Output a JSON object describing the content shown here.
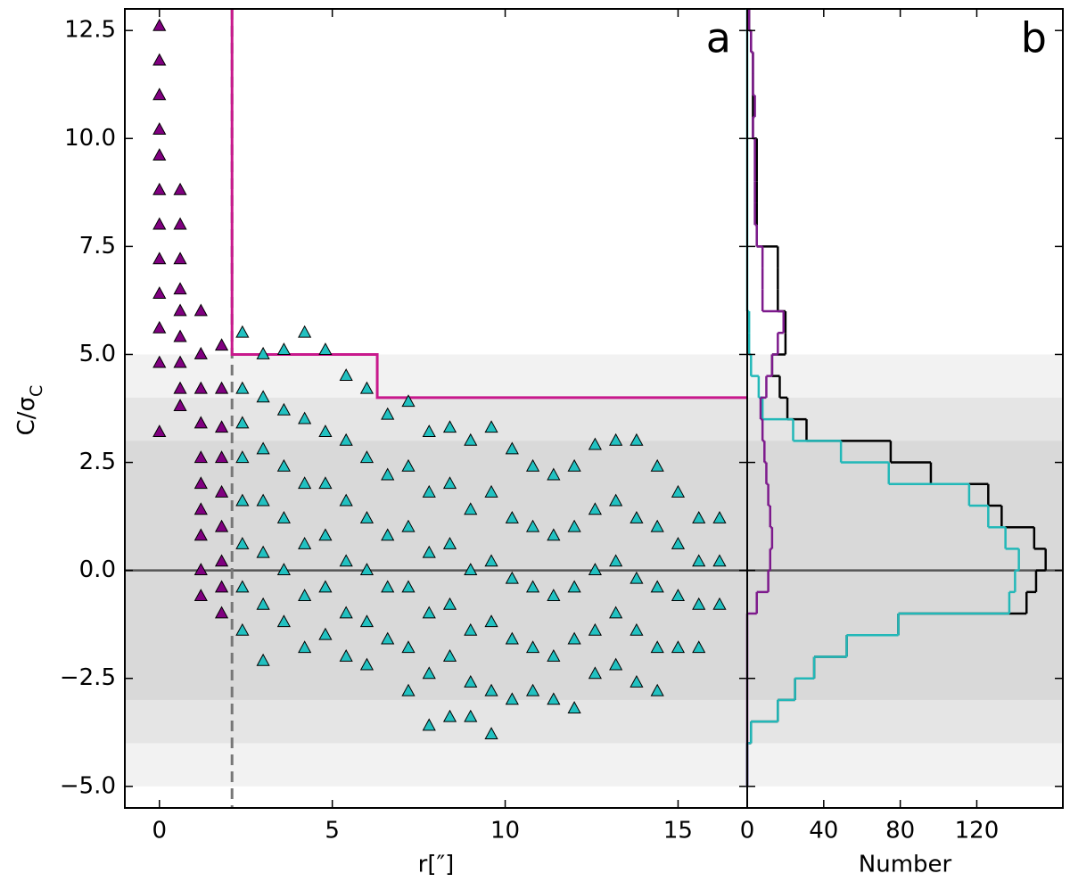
{
  "chart_data": [
    {
      "type": "scatter",
      "xlabel": "r[″]",
      "ylabel": "C/σ",
      "ylabel_sub": "C",
      "annotation": "a",
      "xlim": [
        -1,
        17
      ],
      "ylim": [
        -5.5,
        13
      ],
      "xticks": [
        0,
        5,
        10,
        15
      ],
      "yticks": [
        {
          "value": -5,
          "label": "−5.0"
        },
        {
          "value": -2.5,
          "label": "−2.5"
        },
        {
          "value": 0,
          "label": "0.0"
        },
        2.5,
        {
          "value": 5,
          "label": "5.0"
        },
        7.5,
        {
          "value": 10,
          "label": "10.0"
        },
        12.5
      ],
      "bands": [
        {
          "half_width": 5,
          "color": "#f2f2f2"
        },
        {
          "half_width": 4,
          "color": "#e5e5e5"
        },
        {
          "half_width": 3,
          "color": "#d9d9d9"
        }
      ],
      "hline": 0,
      "hline_color": "#555555",
      "vline": 2.1,
      "vline_color": "#777777",
      "selection": {
        "color": "#c8198c",
        "x": [
          2.1,
          2.1,
          6.3,
          6.3,
          17
        ],
        "y": [
          13,
          5,
          5,
          4,
          4
        ]
      },
      "series": [
        {
          "color": "#800080",
          "x": [
            0,
            0,
            0,
            0,
            0,
            0,
            0,
            0,
            0,
            0,
            0,
            0,
            0.6,
            0.6,
            0.6,
            0.6,
            0.6,
            0.6,
            0.6,
            0.6,
            0.6,
            1.2,
            1.2,
            1.2,
            1.2,
            1.2,
            1.2,
            1.2,
            1.2,
            1.2,
            1.2,
            1.8,
            1.8,
            1.8,
            1.8,
            1.8,
            1.8,
            1.8,
            1.8,
            1.8
          ],
          "values": [
            12.6,
            11.8,
            11,
            10.2,
            9.6,
            8.8,
            8,
            7.2,
            6.4,
            5.6,
            4.8,
            3.2,
            8.8,
            8,
            7.2,
            6.5,
            6,
            5.4,
            4.8,
            4.2,
            3.8,
            6,
            5,
            4.2,
            3.4,
            2.6,
            2,
            1.4,
            0.8,
            0,
            -0.6,
            5.2,
            4.2,
            3.3,
            2.6,
            1.8,
            1,
            0.2,
            -0.4,
            -1
          ]
        },
        {
          "color": "#22c1c1",
          "x": [
            2.4,
            2.4,
            2.4,
            2.4,
            2.4,
            2.4,
            2.4,
            2.4,
            3,
            3,
            3,
            3,
            3,
            3,
            3,
            3.6,
            3.6,
            3.6,
            3.6,
            3.6,
            3.6,
            4.2,
            4.2,
            4.2,
            4.2,
            4.2,
            4.2,
            4.8,
            4.8,
            4.8,
            4.8,
            4.8,
            4.8,
            5.4,
            5.4,
            5.4,
            5.4,
            5.4,
            5.4,
            6,
            6,
            6,
            6,
            6,
            6,
            6.6,
            6.6,
            6.6,
            6.6,
            6.6,
            7.2,
            7.2,
            7.2,
            7.2,
            7.2,
            7.2,
            7.8,
            7.8,
            7.8,
            7.8,
            7.8,
            7.8,
            8.4,
            8.4,
            8.4,
            8.4,
            8.4,
            8.4,
            9,
            9,
            9,
            9,
            9,
            9,
            9.6,
            9.6,
            9.6,
            9.6,
            9.6,
            9.6,
            10.2,
            10.2,
            10.2,
            10.2,
            10.2,
            10.8,
            10.8,
            10.8,
            10.8,
            10.8,
            11.4,
            11.4,
            11.4,
            11.4,
            11.4,
            12,
            12,
            12,
            12,
            12,
            12.6,
            12.6,
            12.6,
            12.6,
            12.6,
            13.2,
            13.2,
            13.2,
            13.2,
            13.2,
            13.8,
            13.8,
            13.8,
            13.8,
            13.8,
            14.4,
            14.4,
            14.4,
            14.4,
            14.4,
            15,
            15,
            15,
            15,
            15.6,
            15.6,
            15.6,
            15.6,
            16.2,
            16.2,
            16.2
          ],
          "values": [
            5.5,
            4.2,
            3.4,
            2.6,
            1.6,
            0.6,
            -0.4,
            -1.4,
            5,
            4,
            2.8,
            1.6,
            0.4,
            -0.8,
            -2.1,
            5.1,
            3.7,
            2.4,
            1.2,
            0,
            -1.2,
            5.5,
            3.5,
            2,
            0.6,
            -0.6,
            -1.8,
            5.1,
            3.2,
            2,
            0.8,
            -0.4,
            -1.5,
            4.5,
            3,
            1.6,
            0.2,
            -1,
            -2,
            4.2,
            2.6,
            1.2,
            0,
            -1.2,
            -2.2,
            3.6,
            2.2,
            0.8,
            -0.4,
            -1.6,
            3.9,
            2.4,
            1,
            -0.4,
            -1.8,
            -2.8,
            3.2,
            1.8,
            0.4,
            -1,
            -2.4,
            -3.6,
            3.3,
            2,
            0.6,
            -0.8,
            -2,
            -3.4,
            3,
            1.4,
            0,
            -1.4,
            -2.6,
            -3.4,
            3.3,
            1.8,
            0.2,
            -1.2,
            -2.8,
            -3.8,
            2.8,
            1.2,
            -0.2,
            -1.6,
            -3,
            2.4,
            1,
            -0.4,
            -1.8,
            -2.8,
            2.2,
            0.8,
            -0.6,
            -2,
            -3,
            2.4,
            1,
            -0.4,
            -1.6,
            -3.2,
            2.9,
            1.4,
            0,
            -1.4,
            -2.4,
            3,
            1.6,
            0.2,
            -1,
            -2.2,
            3,
            1.2,
            -0.2,
            -1.4,
            -2.6,
            2.4,
            1,
            -0.4,
            -1.8,
            -2.8,
            1.8,
            0.6,
            -0.6,
            -1.8,
            1.2,
            0.2,
            -0.8,
            -1.8,
            1.2,
            0.2,
            -0.8
          ]
        }
      ]
    },
    {
      "type": "histogram",
      "orientation": "horizontal",
      "xlabel": "Number",
      "annotation": "b",
      "xlim": [
        0,
        165
      ],
      "ylim": [
        -5.5,
        13
      ],
      "xticks": [
        0,
        40,
        80,
        120
      ],
      "yticks": [
        -5,
        -2.5,
        0,
        2.5,
        5,
        7.5,
        10,
        12.5
      ],
      "bands": [
        {
          "half_width": 5,
          "color": "#f2f2f2"
        },
        {
          "half_width": 4,
          "color": "#e5e5e5"
        },
        {
          "half_width": 3,
          "color": "#d9d9d9"
        }
      ],
      "hline": 0,
      "hline_color": "#555555",
      "bins": [
        -5,
        -4.5,
        -4,
        -3.5,
        -3,
        -2.5,
        -2,
        -1.5,
        -1,
        -0.5,
        0,
        0.5,
        1,
        1.5,
        2,
        2.5,
        3,
        3.5,
        4,
        4.5,
        5,
        5.5,
        6,
        6.5,
        7,
        7.5,
        8,
        8.5,
        9,
        9.5,
        10,
        10.5,
        11,
        11.5,
        12,
        12.5,
        13
      ],
      "series": [
        {
          "color": "#000000",
          "values": [
            0,
            0,
            2,
            16,
            25,
            35,
            52,
            79,
            146,
            151,
            156,
            150,
            133,
            126,
            96,
            75,
            31,
            21,
            17,
            13,
            20,
            20,
            16,
            16,
            16,
            5,
            5,
            5,
            5,
            5,
            3,
            3,
            3,
            3,
            2,
            1
          ]
        },
        {
          "color": "#22b8b8",
          "values": [
            0,
            0,
            2,
            16,
            25,
            35,
            52,
            79,
            137,
            140,
            142,
            135,
            126,
            116,
            74,
            49,
            24,
            8,
            6,
            2,
            1,
            1,
            0,
            0,
            0,
            0,
            0,
            0,
            0,
            0,
            0,
            0,
            0,
            0,
            0,
            0
          ]
        },
        {
          "color": "#7d1a8c",
          "values": [
            0,
            0,
            0,
            0,
            0,
            0,
            0,
            0,
            5,
            11,
            12,
            13,
            12,
            11,
            10,
            9,
            8,
            7,
            10,
            13,
            16,
            19,
            8,
            8,
            8,
            5,
            4,
            4,
            4,
            4,
            3,
            4,
            3,
            3,
            2,
            1
          ]
        }
      ]
    }
  ]
}
